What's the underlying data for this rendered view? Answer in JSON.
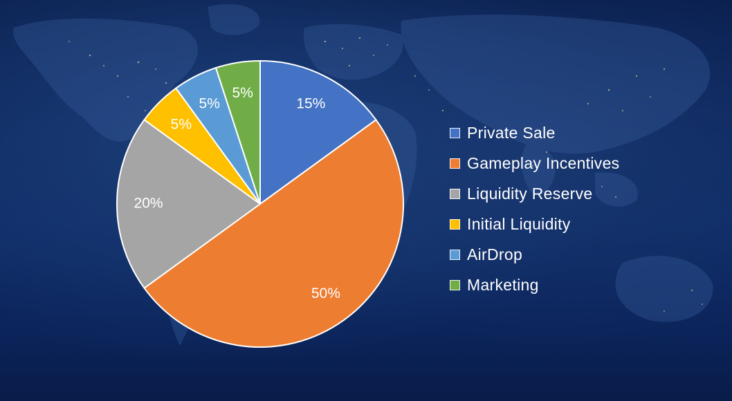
{
  "chart_data": {
    "type": "pie",
    "slices": [
      {
        "label": "Private Sale",
        "value": 15,
        "display": "15%",
        "color": "#4472C4"
      },
      {
        "label": "Gameplay Incentives",
        "value": 50,
        "display": "50%",
        "color": "#ED7D31"
      },
      {
        "label": "Liquidity Reserve",
        "value": 20,
        "display": "20%",
        "color": "#A5A5A5"
      },
      {
        "label": "Initial Liquidity",
        "value": 5,
        "display": "5%",
        "color": "#FFC000"
      },
      {
        "label": "AirDrop",
        "value": 5,
        "display": "5%",
        "color": "#5B9BD5"
      },
      {
        "label": "Marketing",
        "value": 5,
        "display": "5%",
        "color": "#70AD47"
      }
    ],
    "start_angle": "12 o'clock",
    "direction": "clockwise",
    "legend_position": "right",
    "label_color": "#ffffff",
    "background": "world map at night"
  }
}
